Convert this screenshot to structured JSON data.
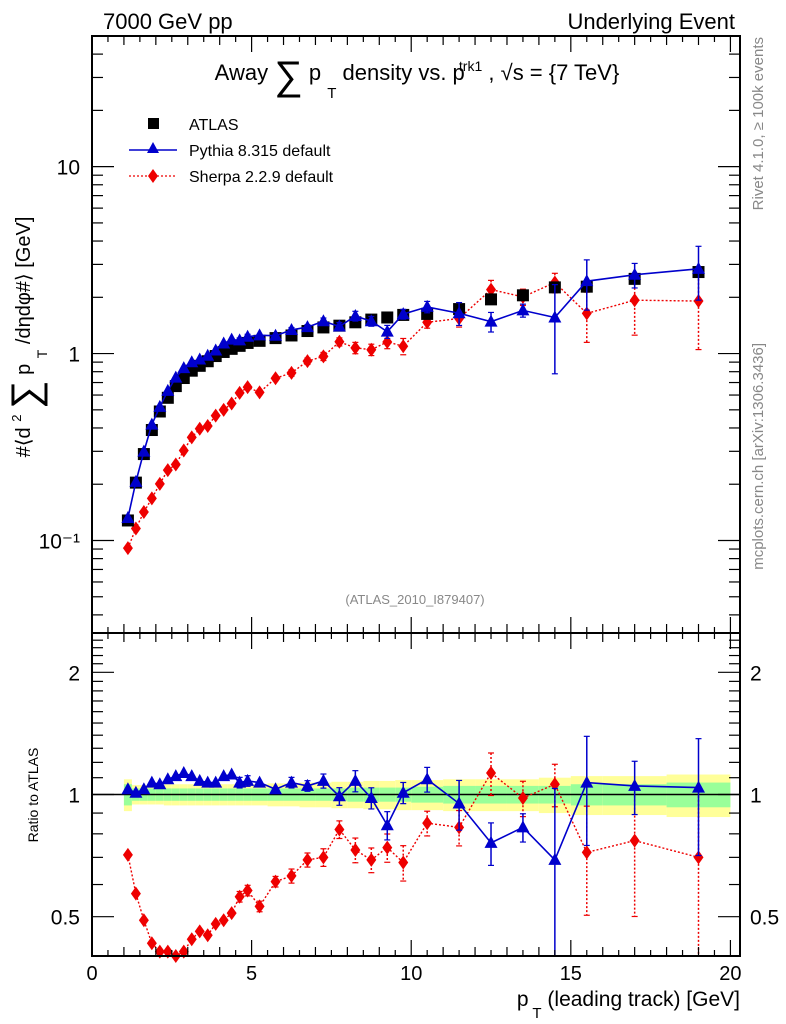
{
  "header": {
    "left": "7000 GeV pp",
    "right": "Underlying Event"
  },
  "side_labels": {
    "rivet": "Rivet 4.1.0, ≥ 100k events",
    "mcplots": "mcplots.cern.ch [arXiv:1306.3436]"
  },
  "analysis_tag": "(ATLAS_2010_I879407)",
  "chart_data": [
    {
      "panel": "main",
      "type": "scatter",
      "title": "Away ∑ p_T density vs. p_T^trk1, √s = {7 TeV}",
      "title_parts": {
        "prefix": "Away",
        "sum": "∑",
        "p": "p",
        "sub_T": "T",
        "mid": "density vs. p",
        "sup": "trk1",
        "suffix": ", √s = {7 TeV}"
      },
      "ylabel": "#⟨d² ∑ p_T /dηdφ#⟩ [GeV]",
      "ylabel_parts": {
        "pre": "#⟨d",
        "sup": "2",
        "sum": "∑",
        "p": "p",
        "sub": "T",
        "post": "/dηdφ#⟩ [GeV]"
      },
      "xlabel": "",
      "yscale": "log",
      "xlim": [
        0,
        20.3
      ],
      "ylim": [
        0.032,
        50
      ],
      "y_ticks": [
        {
          "value": 0.1,
          "label": "10⁻¹"
        },
        {
          "value": 1,
          "label": "1"
        },
        {
          "value": 10,
          "label": "10"
        }
      ],
      "legend_position": "top-left",
      "legend": [
        {
          "name": "ATLAS",
          "marker": "square",
          "color": "#000000"
        },
        {
          "name": "Pythia 8.315 default",
          "marker": "triangle",
          "color": "#0000cc",
          "line": "solid"
        },
        {
          "name": "Sherpa 2.2.9 default",
          "marker": "diamond",
          "color": "#ee0000",
          "line": "dotted"
        }
      ],
      "x": [
        1.125,
        1.375,
        1.625,
        1.875,
        2.125,
        2.375,
        2.625,
        2.875,
        3.125,
        3.375,
        3.625,
        3.875,
        4.125,
        4.375,
        4.625,
        4.875,
        5.25,
        5.75,
        6.25,
        6.75,
        7.25,
        7.75,
        8.25,
        8.75,
        9.25,
        9.75,
        10.5,
        11.5,
        12.5,
        13.5,
        14.5,
        15.5,
        17.0,
        19.0
      ],
      "series": [
        {
          "name": "ATLAS",
          "values": [
            0.128,
            0.204,
            0.29,
            0.39,
            0.49,
            0.58,
            0.67,
            0.74,
            0.81,
            0.86,
            0.91,
            0.97,
            1.02,
            1.06,
            1.1,
            1.14,
            1.17,
            1.21,
            1.25,
            1.32,
            1.38,
            1.41,
            1.47,
            1.52,
            1.56,
            1.61,
            1.63,
            1.73,
            1.95,
            2.05,
            2.26,
            2.28,
            2.51,
            2.73
          ]
        },
        {
          "name": "Pythia 8.315 default",
          "values": [
            0.132,
            0.206,
            0.299,
            0.417,
            0.519,
            0.632,
            0.744,
            0.836,
            0.899,
            0.929,
            0.974,
            1.038,
            1.132,
            1.187,
            1.177,
            1.231,
            1.252,
            1.246,
            1.338,
            1.386,
            1.49,
            1.396,
            1.588,
            1.49,
            1.31,
            1.626,
            1.777,
            1.644,
            1.482,
            1.702,
            1.559,
            2.44,
            2.64,
            2.84
          ],
          "rel_errors": [
            0.01,
            0.01,
            0.01,
            0.01,
            0.01,
            0.01,
            0.01,
            0.01,
            0.01,
            0.01,
            0.01,
            0.01,
            0.02,
            0.02,
            0.03,
            0.03,
            0.02,
            0.02,
            0.03,
            0.03,
            0.04,
            0.05,
            0.06,
            0.06,
            0.08,
            0.06,
            0.07,
            0.14,
            0.12,
            0.08,
            0.5,
            0.3,
            0.15,
            0.32
          ]
        },
        {
          "name": "Sherpa 2.2.9 default",
          "values": [
            0.091,
            0.116,
            0.142,
            0.168,
            0.201,
            0.238,
            0.255,
            0.303,
            0.356,
            0.396,
            0.41,
            0.466,
            0.5,
            0.541,
            0.616,
            0.661,
            0.62,
            0.738,
            0.788,
            0.911,
            0.966,
            1.156,
            1.073,
            1.049,
            1.154,
            1.095,
            1.47,
            1.54,
            2.2,
            2.01,
            2.4,
            1.64,
            1.93,
            1.91
          ],
          "rel_errors": [
            0.01,
            0.01,
            0.01,
            0.01,
            0.01,
            0.01,
            0.01,
            0.01,
            0.01,
            0.02,
            0.02,
            0.02,
            0.02,
            0.02,
            0.03,
            0.03,
            0.03,
            0.03,
            0.04,
            0.04,
            0.05,
            0.05,
            0.07,
            0.07,
            0.08,
            0.1,
            0.07,
            0.1,
            0.12,
            0.1,
            0.12,
            0.3,
            0.35,
            0.45
          ]
        }
      ]
    },
    {
      "panel": "ratio",
      "type": "scatter",
      "title": "",
      "ylabel": "Ratio to ATLAS",
      "xlabel": "p_T (leading track) [GeV]",
      "xlabel_parts": {
        "p": "p",
        "sub": "T",
        "rest": "(leading track) [GeV]"
      },
      "yscale": "log",
      "xlim": [
        0,
        20.3
      ],
      "ylim": [
        0.4,
        2.5
      ],
      "x_ticks": [
        0,
        5,
        10,
        15,
        20
      ],
      "y_ticks": [
        {
          "value": 0.5,
          "label": "0.5"
        },
        {
          "value": 1,
          "label": "1"
        },
        {
          "value": 2,
          "label": "2"
        }
      ],
      "x": [
        1.125,
        1.375,
        1.625,
        1.875,
        2.125,
        2.375,
        2.625,
        2.875,
        3.125,
        3.375,
        3.625,
        3.875,
        4.125,
        4.375,
        4.625,
        4.875,
        5.25,
        5.75,
        6.25,
        6.75,
        7.25,
        7.75,
        8.25,
        8.75,
        9.25,
        9.75,
        10.5,
        11.5,
        12.5,
        13.5,
        14.5,
        15.5,
        17.0,
        19.0
      ],
      "bins": [
        [
          1.0,
          1.25
        ],
        [
          1.25,
          1.5
        ],
        [
          1.5,
          1.75
        ],
        [
          1.75,
          2.0
        ],
        [
          2.0,
          2.25
        ],
        [
          2.25,
          2.5
        ],
        [
          2.5,
          2.75
        ],
        [
          2.75,
          3.0
        ],
        [
          3.0,
          3.25
        ],
        [
          3.25,
          3.5
        ],
        [
          3.5,
          3.75
        ],
        [
          3.75,
          4.0
        ],
        [
          4.0,
          4.25
        ],
        [
          4.25,
          4.5
        ],
        [
          4.5,
          4.75
        ],
        [
          4.75,
          5.0
        ],
        [
          5.0,
          5.5
        ],
        [
          5.5,
          6.0
        ],
        [
          6.0,
          6.5
        ],
        [
          6.5,
          7.0
        ],
        [
          7.0,
          7.5
        ],
        [
          7.5,
          8.0
        ],
        [
          8.0,
          8.5
        ],
        [
          8.5,
          9.0
        ],
        [
          9.0,
          9.5
        ],
        [
          9.5,
          10.0
        ],
        [
          10.0,
          11.0
        ],
        [
          11.0,
          12.0
        ],
        [
          12.0,
          13.0
        ],
        [
          13.0,
          14.0
        ],
        [
          14.0,
          15.0
        ],
        [
          15.0,
          16.0
        ],
        [
          16.0,
          18.0
        ],
        [
          18.0,
          20.0
        ]
      ],
      "band_stat_rel": [
        0.06,
        0.035,
        0.035,
        0.035,
        0.035,
        0.035,
        0.035,
        0.035,
        0.035,
        0.035,
        0.035,
        0.035,
        0.035,
        0.035,
        0.035,
        0.035,
        0.035,
        0.035,
        0.035,
        0.035,
        0.035,
        0.035,
        0.04,
        0.04,
        0.04,
        0.04,
        0.045,
        0.05,
        0.05,
        0.05,
        0.05,
        0.06,
        0.06,
        0.07
      ],
      "band_total_rel": [
        0.09,
        0.055,
        0.055,
        0.055,
        0.055,
        0.06,
        0.06,
        0.06,
        0.06,
        0.06,
        0.06,
        0.06,
        0.06,
        0.06,
        0.06,
        0.06,
        0.06,
        0.065,
        0.065,
        0.07,
        0.07,
        0.075,
        0.075,
        0.08,
        0.08,
        0.085,
        0.085,
        0.09,
        0.09,
        0.09,
        0.1,
        0.11,
        0.11,
        0.12
      ],
      "series": [
        {
          "name": "Pythia 8.315 default",
          "values": [
            1.03,
            1.01,
            1.03,
            1.07,
            1.06,
            1.09,
            1.11,
            1.13,
            1.11,
            1.08,
            1.07,
            1.07,
            1.11,
            1.12,
            1.07,
            1.08,
            1.07,
            1.03,
            1.07,
            1.05,
            1.08,
            0.99,
            1.08,
            0.98,
            0.84,
            1.01,
            1.09,
            0.95,
            0.76,
            0.83,
            0.69,
            1.07,
            1.05,
            1.04
          ],
          "rel_errors": [
            0.01,
            0.01,
            0.01,
            0.01,
            0.01,
            0.01,
            0.01,
            0.01,
            0.01,
            0.01,
            0.01,
            0.01,
            0.02,
            0.02,
            0.03,
            0.03,
            0.02,
            0.02,
            0.03,
            0.03,
            0.04,
            0.05,
            0.06,
            0.06,
            0.08,
            0.06,
            0.07,
            0.14,
            0.12,
            0.08,
            0.5,
            0.3,
            0.15,
            0.32
          ]
        },
        {
          "name": "Sherpa 2.2.9 default",
          "values": [
            0.71,
            0.57,
            0.49,
            0.43,
            0.41,
            0.41,
            0.38,
            0.41,
            0.44,
            0.46,
            0.45,
            0.48,
            0.49,
            0.51,
            0.56,
            0.58,
            0.53,
            0.61,
            0.63,
            0.69,
            0.7,
            0.82,
            0.73,
            0.69,
            0.74,
            0.68,
            0.85,
            0.83,
            1.13,
            0.98,
            1.06,
            0.72,
            0.77,
            0.7
          ],
          "rel_errors": [
            0.01,
            0.01,
            0.01,
            0.01,
            0.01,
            0.01,
            0.01,
            0.01,
            0.01,
            0.02,
            0.02,
            0.02,
            0.02,
            0.02,
            0.03,
            0.03,
            0.03,
            0.03,
            0.04,
            0.04,
            0.05,
            0.05,
            0.07,
            0.07,
            0.08,
            0.1,
            0.07,
            0.1,
            0.12,
            0.1,
            0.12,
            0.3,
            0.35,
            0.45
          ]
        }
      ]
    }
  ],
  "colors": {
    "atlas": "#000000",
    "pythia": "#0000cc",
    "sherpa": "#ee0000",
    "band_inner": "#99ff99",
    "band_outer": "#ffff99",
    "side_text": "#888888"
  }
}
